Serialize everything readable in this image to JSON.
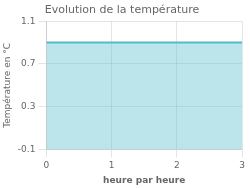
{
  "chart_data": {
    "type": "area",
    "title": "Evolution de la température",
    "xlabel": "heure par heure",
    "ylabel": "Température en °C",
    "x": [
      0,
      3
    ],
    "values": [
      0.9,
      0.9
    ],
    "color": "#55bbcc",
    "xlim": [
      0,
      3
    ],
    "ylim": [
      -0.1,
      1.1
    ],
    "xticks": [
      0,
      1,
      2,
      3
    ],
    "yticks": [
      -0.1,
      0.3,
      0.7,
      1.1
    ],
    "grid": true
  }
}
